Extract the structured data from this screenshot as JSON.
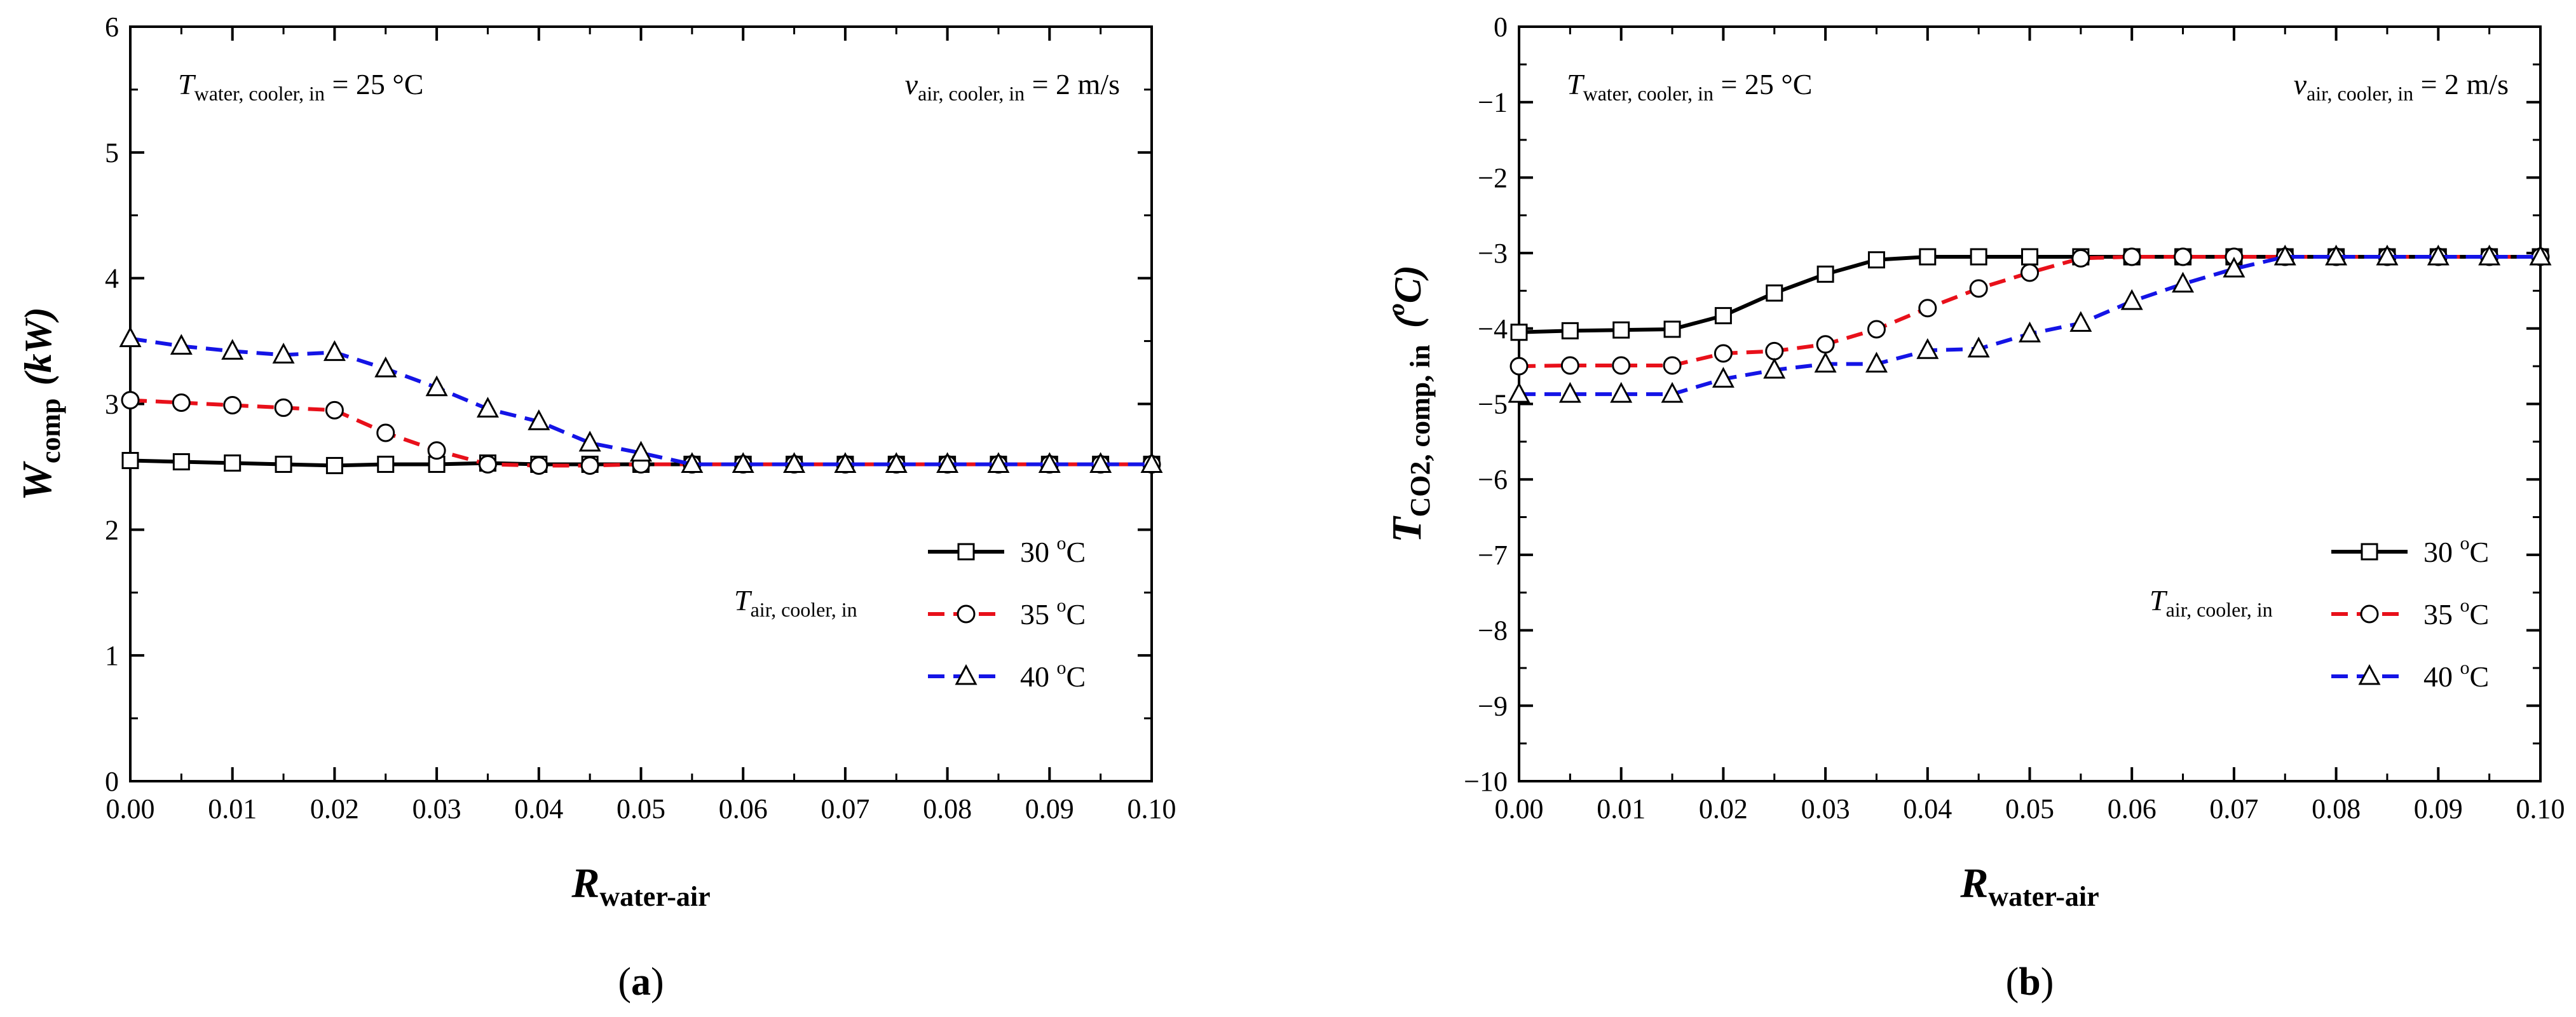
{
  "chart_data": [
    {
      "type": "line",
      "panel_label": "a",
      "xlabel_main": "R",
      "xlabel_sub": "water-air",
      "ylabel_main": "W",
      "ylabel_sub": "comp",
      "ylabel_unit": "(kW)",
      "xlim": [
        0.0,
        0.1
      ],
      "ylim": [
        0,
        6
      ],
      "xticks": [
        "0.00",
        "0.01",
        "0.02",
        "0.03",
        "0.04",
        "0.05",
        "0.06",
        "0.07",
        "0.08",
        "0.09",
        "0.10"
      ],
      "yticks": [
        "0",
        "1",
        "2",
        "3",
        "4",
        "5",
        "6"
      ],
      "annotation_left": {
        "main": "T",
        "sub": "water, cooler, in",
        "value": " = 25 °C"
      },
      "annotation_right": {
        "main": "v",
        "sub": "air, cooler, in",
        "value": " = 2 m/s"
      },
      "legend_title": {
        "main": "T",
        "sub": "air, cooler, in"
      },
      "legend_placement": "right",
      "x": [
        0.0,
        0.005,
        0.01,
        0.015,
        0.02,
        0.025,
        0.03,
        0.035,
        0.04,
        0.045,
        0.05,
        0.055,
        0.06,
        0.065,
        0.07,
        0.075,
        0.08,
        0.085,
        0.09,
        0.095,
        0.1
      ],
      "series": [
        {
          "name": "30 °C",
          "name_base": "30 ",
          "name_sup": "o",
          "name_unit": "C",
          "color": "#000000",
          "marker": "square",
          "dash": "solid",
          "values": [
            2.55,
            2.54,
            2.53,
            2.52,
            2.51,
            2.52,
            2.52,
            2.53,
            2.52,
            2.52,
            2.52,
            2.52,
            2.52,
            2.52,
            2.52,
            2.52,
            2.52,
            2.52,
            2.52,
            2.52,
            2.52
          ]
        },
        {
          "name": "35 °C",
          "name_base": "35 ",
          "name_sup": "o",
          "name_unit": "C",
          "color": "#e8101a",
          "marker": "circle",
          "dash": "dashed",
          "values": [
            3.03,
            3.01,
            2.99,
            2.97,
            2.95,
            2.77,
            2.63,
            2.52,
            2.51,
            2.51,
            2.52,
            2.52,
            2.52,
            2.52,
            2.52,
            2.52,
            2.52,
            2.52,
            2.52,
            2.52,
            2.52
          ]
        },
        {
          "name": "40 °C",
          "name_base": "40 ",
          "name_sup": "o",
          "name_unit": "C",
          "color": "#1414e6",
          "marker": "triangle",
          "dash": "dashed",
          "values": [
            3.52,
            3.46,
            3.42,
            3.39,
            3.41,
            3.28,
            3.13,
            2.96,
            2.86,
            2.69,
            2.61,
            2.52,
            2.52,
            2.52,
            2.52,
            2.52,
            2.52,
            2.52,
            2.52,
            2.52,
            2.52
          ]
        }
      ]
    },
    {
      "type": "line",
      "panel_label": "b",
      "xlabel_main": "R",
      "xlabel_sub": "water-air",
      "ylabel_main": "T",
      "ylabel_sub": "CO2, comp, in",
      "ylabel_unit_pre": "(",
      "ylabel_unit_sup": "o",
      "ylabel_unit_post": "C)",
      "xlim": [
        0.0,
        0.1
      ],
      "ylim": [
        -10,
        0
      ],
      "xticks": [
        "0.00",
        "0.01",
        "0.02",
        "0.03",
        "0.04",
        "0.05",
        "0.06",
        "0.07",
        "0.08",
        "0.09",
        "0.10"
      ],
      "yticks": [
        "0",
        "−1",
        "−2",
        "−3",
        "−4",
        "−5",
        "−6",
        "−7",
        "−8",
        "−9",
        "−10"
      ],
      "annotation_left": {
        "main": "T",
        "sub": "water, cooler, in",
        "value": " = 25 °C"
      },
      "annotation_right": {
        "main": "v",
        "sub": "air, cooler, in",
        "value": " = 2 m/s"
      },
      "legend_title": {
        "main": "T",
        "sub": "air, cooler, in"
      },
      "legend_placement": "right",
      "x": [
        0.0,
        0.005,
        0.01,
        0.015,
        0.02,
        0.025,
        0.03,
        0.035,
        0.04,
        0.045,
        0.05,
        0.055,
        0.06,
        0.065,
        0.07,
        0.075,
        0.08,
        0.085,
        0.09,
        0.095,
        0.1
      ],
      "series": [
        {
          "name": "30 °C",
          "name_base": "30 ",
          "name_sup": "o",
          "name_unit": "C",
          "color": "#000000",
          "marker": "square",
          "dash": "solid",
          "values": [
            -4.05,
            -4.03,
            -4.02,
            -4.01,
            -3.83,
            -3.53,
            -3.28,
            -3.09,
            -3.05,
            -3.05,
            -3.05,
            -3.05,
            -3.05,
            -3.05,
            -3.05,
            -3.05,
            -3.05,
            -3.05,
            -3.05,
            -3.05,
            -3.05
          ]
        },
        {
          "name": "35 °C",
          "name_base": "35 ",
          "name_sup": "o",
          "name_unit": "C",
          "color": "#e8101a",
          "marker": "circle",
          "dash": "dashed",
          "values": [
            -4.5,
            -4.49,
            -4.49,
            -4.49,
            -4.33,
            -4.3,
            -4.21,
            -4.01,
            -3.73,
            -3.47,
            -3.26,
            -3.07,
            -3.05,
            -3.05,
            -3.05,
            -3.05,
            -3.05,
            -3.05,
            -3.05,
            -3.05,
            -3.05
          ]
        },
        {
          "name": "40 °C",
          "name_base": "40 ",
          "name_sup": "o",
          "name_unit": "C",
          "color": "#1414e6",
          "marker": "triangle",
          "dash": "dashed",
          "values": [
            -4.87,
            -4.87,
            -4.87,
            -4.87,
            -4.67,
            -4.55,
            -4.47,
            -4.47,
            -4.29,
            -4.27,
            -4.07,
            -3.93,
            -3.64,
            -3.41,
            -3.21,
            -3.05,
            -3.05,
            -3.05,
            -3.05,
            -3.05,
            -3.05
          ]
        }
      ]
    }
  ]
}
